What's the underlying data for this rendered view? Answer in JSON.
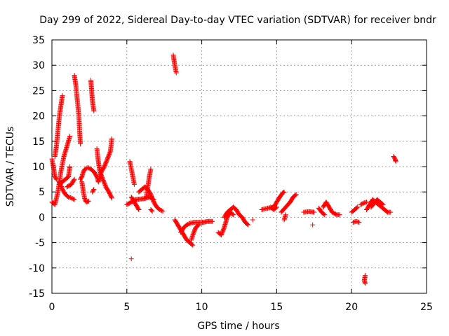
{
  "chart_data": {
    "type": "scatter",
    "title": "Day 299 of 2022, Sidereal Day-to-day VTEC variation (SDTVAR) for receiver bndr",
    "xlabel": "GPS time / hours",
    "ylabel": "SDTVAR / TECUs",
    "xlim": [
      0,
      25
    ],
    "ylim": [
      -15,
      35
    ],
    "xticks": [
      0,
      5,
      10,
      15,
      20,
      25
    ],
    "yticks": [
      -15,
      -10,
      -5,
      0,
      5,
      10,
      15,
      20,
      25,
      30,
      35
    ],
    "grid": true,
    "marker": "+",
    "color": "#ff0000",
    "segments": [
      [
        [
          0.0,
          3.0
        ],
        [
          0.2,
          2.5
        ],
        [
          0.4,
          5.0
        ],
        [
          0.6,
          9.0
        ],
        [
          0.8,
          12.0
        ],
        [
          1.0,
          14.0
        ],
        [
          1.2,
          16.0
        ]
      ],
      [
        [
          0.0,
          11.5
        ],
        [
          0.1,
          10.0
        ],
        [
          0.2,
          8.0
        ],
        [
          0.3,
          7.5
        ]
      ],
      [
        [
          0.2,
          12.0
        ],
        [
          0.3,
          14.0
        ],
        [
          0.4,
          17.0
        ],
        [
          0.5,
          20.0
        ],
        [
          0.6,
          22.0
        ],
        [
          0.7,
          24.0
        ]
      ],
      [
        [
          0.5,
          7.0
        ],
        [
          0.7,
          5.5
        ],
        [
          0.9,
          4.5
        ],
        [
          1.1,
          4.0
        ],
        [
          1.3,
          3.8
        ],
        [
          1.5,
          3.5
        ]
      ],
      [
        [
          0.5,
          6.5
        ],
        [
          0.7,
          7.0
        ],
        [
          0.9,
          7.5
        ],
        [
          1.1,
          8.0
        ],
        [
          1.2,
          10.0
        ]
      ],
      [
        [
          1.0,
          6.0
        ],
        [
          1.3,
          6.5
        ],
        [
          1.5,
          7.5
        ]
      ],
      [
        [
          1.5,
          28.0
        ],
        [
          1.6,
          26.0
        ],
        [
          1.7,
          23.0
        ],
        [
          1.8,
          20.0
        ],
        [
          1.85,
          17.0
        ],
        [
          1.9,
          14.5
        ]
      ],
      [
        [
          1.9,
          7.5
        ],
        [
          2.0,
          8.0
        ],
        [
          2.1,
          9.0
        ],
        [
          2.2,
          9.5
        ],
        [
          2.4,
          9.8
        ],
        [
          2.6,
          9.5
        ],
        [
          2.8,
          9.0
        ],
        [
          3.0,
          8.0
        ],
        [
          3.1,
          7.0
        ]
      ],
      [
        [
          2.0,
          7.0
        ],
        [
          2.1,
          5.0
        ],
        [
          2.2,
          3.5
        ],
        [
          2.3,
          3.0
        ],
        [
          2.45,
          3.2
        ]
      ],
      [
        [
          2.6,
          27.0
        ],
        [
          2.65,
          25.0
        ],
        [
          2.7,
          23.0
        ],
        [
          2.8,
          21.0
        ]
      ],
      [
        [
          2.7,
          5.0
        ],
        [
          2.8,
          5.5
        ]
      ],
      [
        [
          3.0,
          13.5
        ],
        [
          3.1,
          11.0
        ],
        [
          3.2,
          9.0
        ],
        [
          3.4,
          7.5
        ],
        [
          3.6,
          6.0
        ],
        [
          3.8,
          5.0
        ],
        [
          4.0,
          3.8
        ]
      ],
      [
        [
          3.1,
          7.0
        ],
        [
          3.3,
          9.0
        ],
        [
          3.5,
          10.0
        ],
        [
          3.7,
          11.5
        ],
        [
          3.9,
          13.0
        ],
        [
          4.0,
          15.5
        ]
      ],
      [
        [
          5.0,
          2.5
        ],
        [
          5.3,
          3.0
        ],
        [
          5.6,
          3.5
        ],
        [
          5.9,
          3.6
        ],
        [
          6.2,
          3.7
        ],
        [
          6.5,
          4.0
        ],
        [
          6.8,
          3.5
        ]
      ],
      [
        [
          5.2,
          11.0
        ],
        [
          5.3,
          9.5
        ],
        [
          5.4,
          8.0
        ],
        [
          5.5,
          6.5
        ]
      ],
      [
        [
          5.3,
          4.0
        ],
        [
          5.5,
          3.0
        ],
        [
          5.7,
          2.0
        ],
        [
          5.8,
          1.5
        ]
      ],
      [
        [
          5.3,
          -8.2
        ]
      ],
      [
        [
          5.8,
          5.0
        ],
        [
          6.0,
          5.5
        ],
        [
          6.2,
          6.0
        ],
        [
          6.4,
          5.5
        ],
        [
          6.6,
          4.5
        ],
        [
          6.8,
          3.0
        ],
        [
          7.0,
          2.0
        ],
        [
          7.2,
          1.5
        ],
        [
          7.4,
          1.2
        ]
      ],
      [
        [
          6.3,
          4.0
        ],
        [
          6.4,
          6.0
        ],
        [
          6.5,
          8.0
        ],
        [
          6.6,
          9.5
        ]
      ],
      [
        [
          6.6,
          1.5
        ],
        [
          6.7,
          1.2
        ]
      ],
      [
        [
          8.1,
          32.0
        ],
        [
          8.2,
          30.0
        ],
        [
          8.3,
          28.5
        ]
      ],
      [
        [
          8.2,
          -0.5
        ],
        [
          8.4,
          -1.5
        ],
        [
          8.6,
          -2.5
        ],
        [
          8.8,
          -3.5
        ],
        [
          9.0,
          -4.5
        ],
        [
          9.2,
          -5.0
        ],
        [
          9.4,
          -5.5
        ]
      ],
      [
        [
          8.6,
          -3.0
        ],
        [
          8.8,
          -2.0
        ],
        [
          9.0,
          -1.5
        ],
        [
          9.2,
          -1.2
        ],
        [
          9.5,
          -1.0
        ],
        [
          9.8,
          -1.0
        ],
        [
          10.1,
          -1.0
        ],
        [
          10.4,
          -0.8
        ],
        [
          10.7,
          -0.8
        ]
      ],
      [
        [
          9.3,
          -4.5
        ],
        [
          9.4,
          -3.5
        ],
        [
          9.6,
          -2.0
        ],
        [
          9.8,
          -1.5
        ]
      ],
      [
        [
          11.1,
          -3.0
        ],
        [
          11.3,
          -3.5
        ],
        [
          11.5,
          -2.0
        ],
        [
          11.7,
          0.0
        ],
        [
          11.9,
          1.0
        ],
        [
          12.1,
          0.5
        ]
      ],
      [
        [
          11.5,
          0.0
        ],
        [
          11.7,
          1.0
        ],
        [
          11.9,
          1.5
        ],
        [
          12.1,
          2.0
        ],
        [
          12.3,
          1.5
        ],
        [
          12.5,
          0.5
        ],
        [
          12.7,
          0.0
        ],
        [
          12.9,
          -1.0
        ],
        [
          13.1,
          -1.5
        ]
      ],
      [
        [
          13.4,
          -0.5
        ]
      ],
      [
        [
          14.0,
          1.5
        ],
        [
          14.4,
          1.8
        ],
        [
          14.8,
          2.0
        ],
        [
          15.0,
          3.0
        ],
        [
          15.2,
          4.0
        ],
        [
          15.4,
          4.8
        ],
        [
          15.5,
          5.0
        ]
      ],
      [
        [
          14.6,
          2.0
        ],
        [
          14.8,
          1.5
        ],
        [
          15.0,
          2.0
        ]
      ],
      [
        [
          15.3,
          1.0
        ],
        [
          15.6,
          2.0
        ],
        [
          15.9,
          3.0
        ],
        [
          16.1,
          4.0
        ],
        [
          16.3,
          4.5
        ]
      ],
      [
        [
          15.5,
          -0.5
        ],
        [
          15.6,
          0.5
        ]
      ],
      [
        [
          16.8,
          1.0
        ],
        [
          17.2,
          1.1
        ],
        [
          17.5,
          1.0
        ]
      ],
      [
        [
          17.4,
          -1.5
        ]
      ],
      [
        [
          17.8,
          1.8
        ],
        [
          18.0,
          1.0
        ],
        [
          18.2,
          0.5
        ]
      ],
      [
        [
          18.1,
          2.0
        ],
        [
          18.3,
          3.0
        ],
        [
          18.5,
          2.0
        ],
        [
          18.7,
          1.0
        ],
        [
          19.0,
          0.5
        ],
        [
          19.2,
          0.5
        ]
      ],
      [
        [
          20.0,
          1.0
        ],
        [
          20.2,
          1.5
        ],
        [
          20.4,
          2.0
        ]
      ],
      [
        [
          20.1,
          -1.0
        ],
        [
          20.3,
          -0.8
        ],
        [
          20.5,
          -1.0
        ]
      ],
      [
        [
          20.6,
          2.5
        ],
        [
          20.8,
          2.8
        ],
        [
          21.0,
          3.0
        ]
      ],
      [
        [
          20.9,
          -11.5
        ],
        [
          20.85,
          -12.5
        ],
        [
          20.9,
          -13.0
        ]
      ],
      [
        [
          21.0,
          1.5
        ],
        [
          21.2,
          2.5
        ],
        [
          21.4,
          3.5
        ],
        [
          21.6,
          3.0
        ],
        [
          21.8,
          2.5
        ],
        [
          22.0,
          2.0
        ],
        [
          22.2,
          1.5
        ],
        [
          22.4,
          1.0
        ],
        [
          22.6,
          1.0
        ]
      ],
      [
        [
          21.3,
          2.0
        ],
        [
          21.5,
          2.8
        ],
        [
          21.7,
          3.5
        ],
        [
          21.9,
          3.0
        ],
        [
          22.1,
          2.5
        ]
      ],
      [
        [
          22.8,
          12.0
        ],
        [
          22.9,
          11.5
        ],
        [
          22.95,
          11.0
        ]
      ]
    ]
  }
}
